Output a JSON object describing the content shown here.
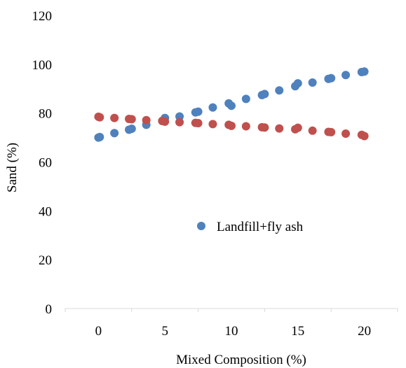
{
  "chart_data": {
    "type": "scatter",
    "title": "",
    "xlabel": "Mixed Composition (%)",
    "ylabel": "Sand (%)",
    "xlim": [
      -2.5,
      22.5
    ],
    "ylim": [
      0,
      120
    ],
    "xticks": [
      "0",
      "5",
      "10",
      "15",
      "20"
    ],
    "yticks": [
      "0",
      "20",
      "40",
      "60",
      "80",
      "100",
      "120"
    ],
    "grid": false,
    "legend": {
      "placement": "center-right",
      "entries": [
        "Landfill+fly ash"
      ]
    },
    "series": [
      {
        "name": "Landfill+fly ash",
        "color": "#4f81bd",
        "x": [
          0,
          0.1,
          1.2,
          2.3,
          2.5,
          3.6,
          4.8,
          5.0,
          6.1,
          7.3,
          7.5,
          8.6,
          9.8,
          10.0,
          11.1,
          12.3,
          12.5,
          13.6,
          14.8,
          15.0,
          16.1,
          17.3,
          17.5,
          18.6,
          19.8,
          20.0
        ],
        "y": [
          70,
          70.2,
          71.8,
          73.2,
          73.6,
          75.2,
          76.8,
          78,
          78.6,
          80.3,
          80.6,
          82.3,
          84,
          83,
          85.8,
          87.4,
          87.8,
          89.3,
          91,
          92.2,
          92.5,
          94,
          94.3,
          95.6,
          96.8,
          97
        ]
      },
      {
        "name": "",
        "color": "#c0504d",
        "x": [
          0,
          0.1,
          1.2,
          2.3,
          2.5,
          3.6,
          4.8,
          5.0,
          6.1,
          7.3,
          7.5,
          8.6,
          9.8,
          10.0,
          11.1,
          12.3,
          12.5,
          13.6,
          14.8,
          15.0,
          16.1,
          17.3,
          17.5,
          18.6,
          19.8,
          20.0
        ],
        "y": [
          78.5,
          78.3,
          78,
          77.6,
          77.5,
          77.1,
          76.8,
          76.5,
          76.3,
          76,
          75.9,
          75.5,
          75.2,
          74.8,
          74.6,
          74.2,
          74.1,
          73.7,
          73.4,
          74,
          72.8,
          72.3,
          72.2,
          71.6,
          71.1,
          70.6
        ]
      }
    ]
  }
}
